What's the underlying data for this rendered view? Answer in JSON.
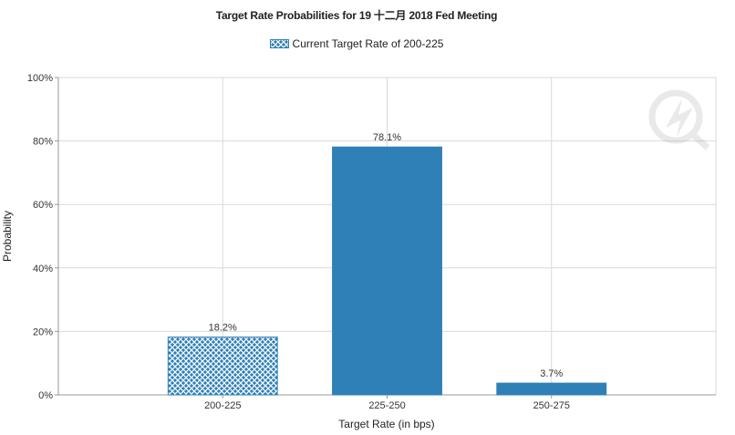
{
  "colors": {
    "bar": "#2e80b7",
    "grid": "#d9d9d9",
    "axis": "#999999"
  },
  "chart_data": {
    "type": "bar",
    "title": "Target Rate Probabilities for 19 十二月 2018  Fed Meeting",
    "legend": {
      "label": "Current Target Rate of 200-225",
      "pattern": "crosshatch",
      "placement": "top-center"
    },
    "categories": [
      "200-225",
      "225-250",
      "250-275"
    ],
    "values": [
      18.2,
      78.1,
      3.7
    ],
    "data_labels": [
      "18.2%",
      "78.1%",
      "3.7%"
    ],
    "highlighted_category": "200-225",
    "xlabel": "Target Rate (in bps)",
    "ylabel": "Probability",
    "ylim": [
      0,
      100
    ],
    "yticks": [
      "0%",
      "20%",
      "40%",
      "60%",
      "80%",
      "100%"
    ],
    "grid": true
  }
}
